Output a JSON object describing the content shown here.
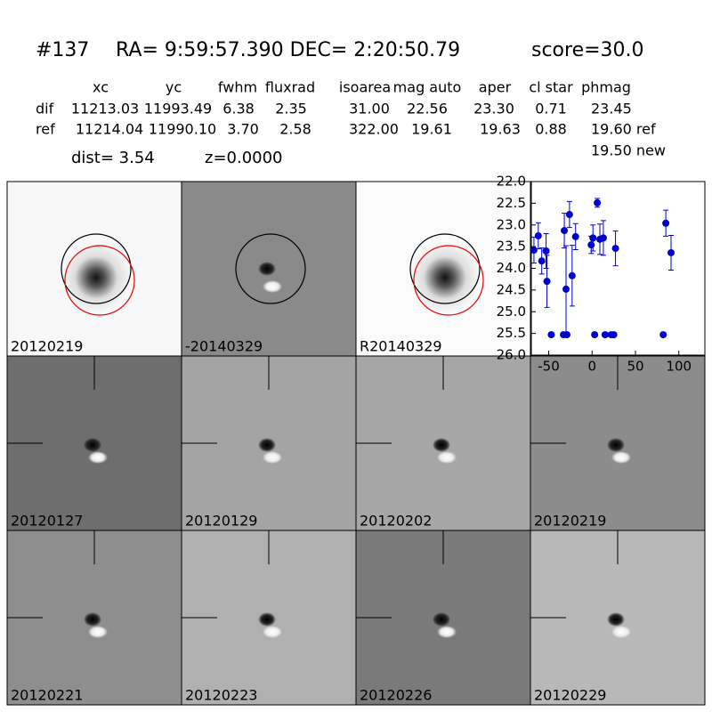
{
  "header": {
    "id": "#137",
    "coords": "RA= 9:59:57.390 DEC= 2:20:50.79",
    "score": "score=30.0",
    "columns": [
      "xc",
      "yc",
      "fwhm",
      "fluxrad",
      "isoarea",
      "mag auto",
      "aper",
      "cl star",
      "phmag"
    ],
    "rows": [
      {
        "label": "dif",
        "cells": [
          "11213.03",
          "11993.49",
          "6.38",
          "2.35",
          "31.00",
          "22.56",
          "23.30",
          "0.71",
          "23.45"
        ]
      },
      {
        "label": "ref",
        "cells": [
          "11214.04",
          "11990.10",
          "3.70",
          "2.58",
          "322.00",
          "19.61",
          "19.63",
          "0.88",
          "19.60 ref"
        ]
      }
    ],
    "new_mag": "19.50 new",
    "dist": "dist=  3.54",
    "z": "z=0.0000"
  },
  "panels": [
    "20120219",
    "-20140329",
    "R20140329",
    "20120127",
    "20120129",
    "20120202",
    "20120219",
    "20120221",
    "20120223",
    "20120226",
    "20120229"
  ],
  "chart_data": {
    "type": "scatter",
    "xlim": [
      -70,
      130
    ],
    "xticks": [
      -50,
      0,
      50,
      100
    ],
    "ylim": [
      26,
      22
    ],
    "yticks": [
      {
        "value": 22,
        "label": "22.0"
      },
      {
        "value": 22.5,
        "label": "22.5"
      },
      {
        "value": 23,
        "label": "23.0"
      },
      {
        "value": 23.5,
        "label": "23.5"
      },
      {
        "value": 24,
        "label": "24.0"
      },
      {
        "value": 24.5,
        "label": "24.5"
      },
      {
        "value": 25,
        "label": "25.0"
      },
      {
        "value": 25.5,
        "label": "25.5"
      },
      {
        "value": 26,
        "label": "26.0"
      }
    ],
    "series": [
      {
        "color": "#0000cc",
        "x": [
          -67,
          -62,
          -58,
          -53,
          -52,
          -47,
          -32,
          -30,
          -33,
          -29,
          -26,
          -23,
          -19,
          -1,
          1,
          3,
          6,
          9,
          13,
          15,
          22,
          25,
          27,
          82,
          85,
          91
        ],
        "values": [
          23.58,
          23.25,
          23.83,
          23.6,
          24.3,
          25.53,
          23.13,
          24.48,
          25.53,
          25.53,
          22.76,
          24.17,
          23.27,
          23.46,
          23.3,
          25.53,
          22.49,
          23.33,
          23.3,
          25.53,
          25.53,
          25.53,
          23.54,
          25.53,
          22.96,
          23.64
        ],
        "errors": [
          0.3,
          0.3,
          0.3,
          0.4,
          0.6,
          0.05,
          0.4,
          1.0,
          0.05,
          0.05,
          0.3,
          0.7,
          0.3,
          0.2,
          0.3,
          0.05,
          0.1,
          0.35,
          0.4,
          0.05,
          0.05,
          0.05,
          0.4,
          0.05,
          0.3,
          0.4
        ]
      }
    ]
  }
}
